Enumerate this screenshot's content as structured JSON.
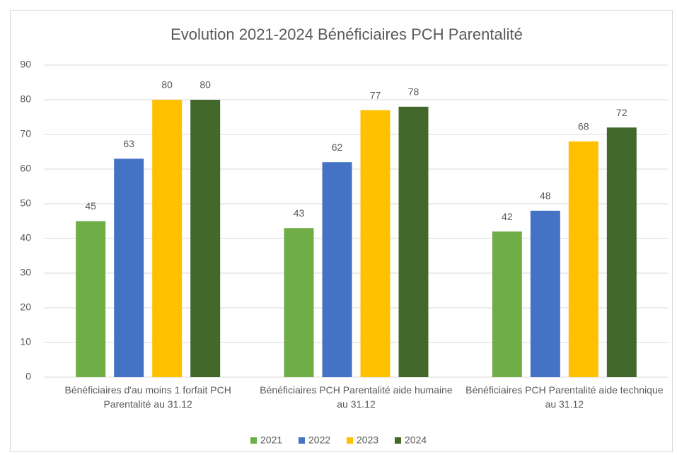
{
  "chart_data": {
    "type": "bar",
    "title": "Evolution 2021-2024 Bénéficiaires PCH Parentalité",
    "categories": [
      "Bénéficiaires d'au moins 1 forfait PCH Parentalité au 31.12",
      "Bénéficiaires PCH Parentalité aide humaine au 31.12",
      "Bénéficiaires PCH Parentalité aide technique au 31.12"
    ],
    "series": [
      {
        "name": "2021",
        "color": "#70ad47",
        "values": [
          45,
          43,
          42
        ]
      },
      {
        "name": "2022",
        "color": "#4472c4",
        "values": [
          63,
          62,
          48
        ]
      },
      {
        "name": "2023",
        "color": "#ffc000",
        "values": [
          80,
          77,
          68
        ]
      },
      {
        "name": "2024",
        "color": "#43682b",
        "values": [
          80,
          78,
          72
        ]
      }
    ],
    "ylim": [
      0,
      90
    ],
    "yticks": [
      0,
      10,
      20,
      30,
      40,
      50,
      60,
      70,
      80,
      90
    ],
    "grid": true,
    "legend": "bottom"
  }
}
